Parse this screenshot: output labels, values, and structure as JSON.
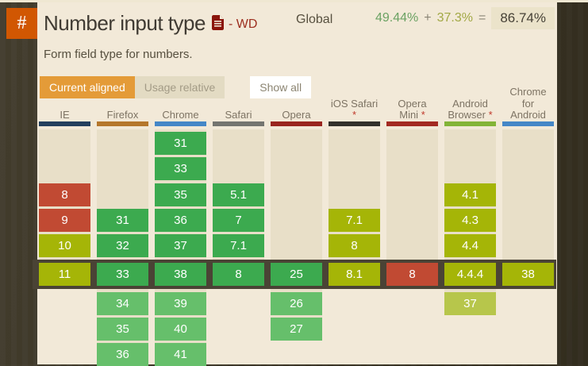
{
  "page": {
    "hash": "#",
    "title": "Number input type",
    "status": "- WD",
    "global_label": "Global",
    "usage_full": "49.44%",
    "plus": "+",
    "usage_partial": "37.3%",
    "equals": "=",
    "usage_total": "86.74%",
    "description": "Form field type for numbers."
  },
  "toolbar": {
    "current_aligned": "Current aligned",
    "usage_relative": "Usage relative",
    "show_all": "Show all"
  },
  "colors": {
    "supported": "#3caa4f",
    "supported_future": "#66bf6b",
    "partial": "#a5b507",
    "partial_future": "#b7c64b",
    "unsupported": "#c14a33",
    "track": "#e8dfc8",
    "current_row_border": "#4a4335",
    "accent_orange": "#e49b38",
    "panel_bg": "#f2e9d8"
  },
  "table": {
    "current_row": 6,
    "columns": [
      {
        "label": "IE",
        "asterisk": "",
        "bar_color": "#24405e",
        "track_rows": 6,
        "cells": [
          {
            "row": 3,
            "version": "8",
            "state": "n"
          },
          {
            "row": 4,
            "version": "9",
            "state": "n"
          },
          {
            "row": 5,
            "version": "10",
            "state": "p"
          },
          {
            "row": 6,
            "version": "11",
            "state": "p"
          }
        ]
      },
      {
        "label": "Firefox",
        "asterisk": "",
        "bar_color": "#b5772c",
        "track_rows": 9,
        "cells": [
          {
            "row": 4,
            "version": "31",
            "state": "y"
          },
          {
            "row": 5,
            "version": "32",
            "state": "y"
          },
          {
            "row": 6,
            "version": "33",
            "state": "y"
          },
          {
            "row": 7,
            "version": "34",
            "state": "yf"
          },
          {
            "row": 8,
            "version": "35",
            "state": "yf"
          },
          {
            "row": 9,
            "version": "36",
            "state": "yf"
          }
        ]
      },
      {
        "label": "Chrome",
        "asterisk": "",
        "bar_color": "#4587c7",
        "track_rows": 9,
        "cells": [
          {
            "row": 1,
            "version": "31",
            "state": "y"
          },
          {
            "row": 2,
            "version": "33",
            "state": "y"
          },
          {
            "row": 3,
            "version": "35",
            "state": "y"
          },
          {
            "row": 4,
            "version": "36",
            "state": "y"
          },
          {
            "row": 5,
            "version": "37",
            "state": "y"
          },
          {
            "row": 6,
            "version": "38",
            "state": "y"
          },
          {
            "row": 7,
            "version": "39",
            "state": "yf"
          },
          {
            "row": 8,
            "version": "40",
            "state": "yf"
          },
          {
            "row": 9,
            "version": "41",
            "state": "yf"
          }
        ]
      },
      {
        "label": "Safari",
        "asterisk": "",
        "bar_color": "#757570",
        "track_rows": 6,
        "cells": [
          {
            "row": 3,
            "version": "5.1",
            "state": "y"
          },
          {
            "row": 4,
            "version": "7",
            "state": "y"
          },
          {
            "row": 5,
            "version": "7.1",
            "state": "y"
          },
          {
            "row": 6,
            "version": "8",
            "state": "y"
          }
        ]
      },
      {
        "label": "Opera",
        "asterisk": "",
        "bar_color": "#99251f",
        "track_rows": 8,
        "cells": [
          {
            "row": 6,
            "version": "25",
            "state": "y"
          },
          {
            "row": 7,
            "version": "26",
            "state": "yf"
          },
          {
            "row": 8,
            "version": "27",
            "state": "yf"
          }
        ]
      },
      {
        "label": "iOS Safari",
        "asterisk": "*",
        "bar_color": "#33312c",
        "track_rows": 6,
        "cells": [
          {
            "row": 4,
            "version": "7.1",
            "state": "p"
          },
          {
            "row": 5,
            "version": "8",
            "state": "p"
          },
          {
            "row": 6,
            "version": "8.1",
            "state": "p"
          }
        ]
      },
      {
        "label": "Opera\nMini",
        "asterisk": "*",
        "bar_color": "#a32a22",
        "track_rows": 6,
        "cells": [
          {
            "row": 6,
            "version": "8",
            "state": "n"
          }
        ]
      },
      {
        "label": "Android\nBrowser",
        "asterisk": "*",
        "bar_color": "#83b438",
        "track_rows": 7,
        "cells": [
          {
            "row": 3,
            "version": "4.1",
            "state": "p"
          },
          {
            "row": 4,
            "version": "4.3",
            "state": "p"
          },
          {
            "row": 5,
            "version": "4.4",
            "state": "p"
          },
          {
            "row": 6,
            "version": "4.4.4",
            "state": "p"
          },
          {
            "row": 7,
            "version": "37",
            "state": "pf"
          }
        ]
      },
      {
        "label": "Chrome for\nAndroid",
        "asterisk": "",
        "bar_color": "#4587c7",
        "track_rows": 6,
        "cells": [
          {
            "row": 6,
            "version": "38",
            "state": "p"
          }
        ]
      }
    ]
  }
}
